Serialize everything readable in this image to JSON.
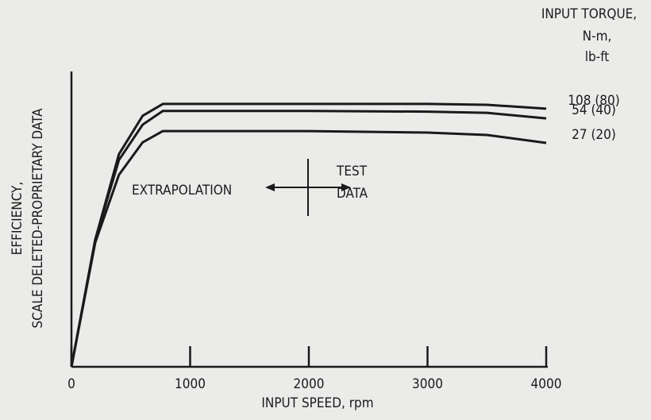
{
  "chart_data": {
    "type": "line",
    "xlabel": "INPUT SPEED, rpm",
    "ylabel": [
      "EFFICIENCY,",
      "SCALE DELETED-PROPRIETARY DATA"
    ],
    "legend_title": [
      "INPUT TORQUE,",
      "N-m,",
      "lb-ft"
    ],
    "annotations": [
      "EXTRAPOLATION",
      "TEST",
      "DATA"
    ],
    "x": [
      0,
      200,
      400,
      600,
      770,
      1000,
      2000,
      3000,
      3500,
      4000
    ],
    "series": [
      {
        "name": "108 (80)",
        "color": "#1a1a1a",
        "values": [
          0,
          43,
          72,
          85,
          89,
          89,
          89,
          89,
          88.7,
          87.4
        ]
      },
      {
        "name": "54 (40)",
        "color": "#1a1a1a",
        "values": [
          0,
          43,
          70,
          82,
          86.6,
          86.6,
          86.6,
          86.4,
          86,
          84.1
        ]
      },
      {
        "name": "27 (20)",
        "color": "#1a1a1a",
        "values": [
          0,
          42,
          65,
          76,
          79.8,
          79.8,
          79.8,
          79.3,
          78.5,
          75.8
        ]
      }
    ],
    "xlim": [
      0,
      4000
    ],
    "xticks": [
      0,
      1000,
      2000,
      3000,
      4000
    ],
    "ylim": [
      0,
      100
    ]
  }
}
